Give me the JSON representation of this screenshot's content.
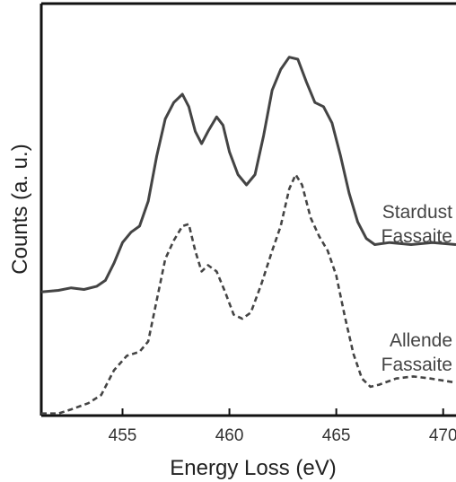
{
  "chart_data": {
    "type": "line",
    "xlabel": "Energy Loss (eV)",
    "ylabel": "Counts (a. u.)",
    "xlim": [
      451.2,
      470.6
    ],
    "ylim": [
      0,
      100
    ],
    "x_ticks": [
      455,
      460,
      465,
      470
    ],
    "x_tick_labels": [
      "455",
      "460",
      "465",
      "470"
    ],
    "y_ticks_shown": false,
    "grid": false,
    "series": [
      {
        "name": "Stardust Fassaite",
        "label_lines": [
          "Stardust",
          "Fassaite"
        ],
        "style": "solid",
        "color": "#444444",
        "points": [
          [
            451.2,
            30.0
          ],
          [
            452.0,
            30.4
          ],
          [
            452.6,
            31.0
          ],
          [
            453.2,
            30.6
          ],
          [
            453.8,
            31.4
          ],
          [
            454.2,
            32.8
          ],
          [
            454.6,
            37.0
          ],
          [
            455.0,
            42.0
          ],
          [
            455.4,
            44.5
          ],
          [
            455.8,
            46.0
          ],
          [
            456.2,
            52.0
          ],
          [
            456.6,
            63.0
          ],
          [
            457.0,
            72.0
          ],
          [
            457.4,
            76.0
          ],
          [
            457.8,
            78.0
          ],
          [
            458.1,
            75.0
          ],
          [
            458.4,
            69.0
          ],
          [
            458.7,
            66.0
          ],
          [
            459.0,
            69.0
          ],
          [
            459.4,
            72.5
          ],
          [
            459.7,
            70.5
          ],
          [
            460.0,
            64.0
          ],
          [
            460.4,
            58.5
          ],
          [
            460.8,
            56.0
          ],
          [
            461.2,
            58.5
          ],
          [
            461.6,
            68.0
          ],
          [
            462.0,
            79.0
          ],
          [
            462.4,
            84.0
          ],
          [
            462.8,
            87.0
          ],
          [
            463.2,
            86.5
          ],
          [
            463.6,
            81.0
          ],
          [
            464.0,
            76.0
          ],
          [
            464.4,
            75.0
          ],
          [
            464.8,
            71.0
          ],
          [
            465.2,
            63.0
          ],
          [
            465.6,
            54.0
          ],
          [
            466.0,
            47.0
          ],
          [
            466.4,
            43.0
          ],
          [
            466.8,
            41.5
          ],
          [
            467.5,
            42.0
          ],
          [
            468.5,
            41.5
          ],
          [
            469.5,
            42.0
          ],
          [
            470.6,
            41.5
          ]
        ]
      },
      {
        "name": "Allende Fassaite",
        "label_lines": [
          "Allende",
          "Fassaite"
        ],
        "style": "dashed",
        "color": "#444444",
        "points": [
          [
            451.2,
            0.5
          ],
          [
            452.0,
            0.5
          ],
          [
            452.6,
            1.5
          ],
          [
            453.4,
            3.0
          ],
          [
            454.0,
            5.0
          ],
          [
            454.6,
            11.0
          ],
          [
            455.2,
            14.5
          ],
          [
            455.8,
            15.5
          ],
          [
            456.2,
            18.0
          ],
          [
            456.6,
            28.0
          ],
          [
            457.0,
            38.0
          ],
          [
            457.4,
            42.5
          ],
          [
            457.8,
            46.0
          ],
          [
            458.1,
            46.5
          ],
          [
            458.4,
            40.0
          ],
          [
            458.7,
            35.0
          ],
          [
            459.0,
            36.5
          ],
          [
            459.4,
            35.0
          ],
          [
            459.8,
            30.0
          ],
          [
            460.2,
            24.5
          ],
          [
            460.6,
            23.5
          ],
          [
            461.0,
            25.0
          ],
          [
            461.5,
            32.0
          ],
          [
            462.0,
            40.0
          ],
          [
            462.4,
            46.0
          ],
          [
            462.8,
            55.0
          ],
          [
            463.1,
            58.5
          ],
          [
            463.4,
            56.0
          ],
          [
            463.8,
            48.0
          ],
          [
            464.2,
            43.5
          ],
          [
            464.6,
            40.0
          ],
          [
            465.0,
            34.0
          ],
          [
            465.4,
            24.0
          ],
          [
            465.8,
            15.0
          ],
          [
            466.2,
            9.0
          ],
          [
            466.6,
            7.0
          ],
          [
            467.0,
            7.5
          ],
          [
            467.8,
            9.0
          ],
          [
            468.6,
            9.5
          ],
          [
            469.4,
            9.0
          ],
          [
            470.6,
            8.0
          ]
        ]
      }
    ]
  }
}
